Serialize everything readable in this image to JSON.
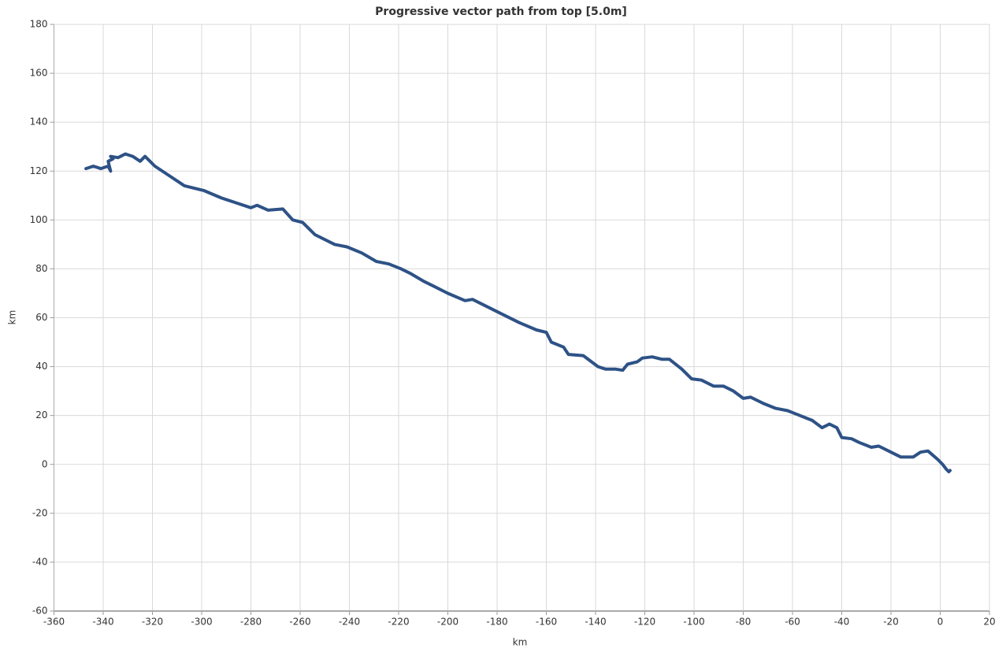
{
  "chart_data": {
    "type": "line",
    "title": "Progressive vector path from top [5.0m]",
    "x_label": "km",
    "y_label": "km",
    "color": "#2e5286",
    "grid": true,
    "xlim": [
      -360,
      20
    ],
    "xticks": [
      -360,
      -340,
      -320,
      -300,
      -280,
      -260,
      -240,
      -220,
      -200,
      -180,
      -160,
      -140,
      -120,
      -100,
      -80,
      -60,
      -40,
      -20,
      0,
      20
    ],
    "ylim": [
      -60,
      180
    ],
    "yticks": [
      -60,
      -40,
      -20,
      0,
      20,
      40,
      60,
      80,
      100,
      120,
      140,
      160,
      180
    ],
    "x": [
      -347,
      -344,
      -341,
      -338,
      -337,
      -338,
      -336,
      -337,
      -334,
      -331,
      -328,
      -325,
      -323,
      -319,
      -313,
      -307,
      -299,
      -292,
      -286,
      -280,
      -277.5,
      -273,
      -267,
      -263,
      -259,
      -254,
      -246,
      -241,
      -235,
      -229,
      -224,
      -219,
      -215,
      -210,
      -206,
      -200,
      -193,
      -190,
      -183,
      -177,
      -171,
      -164,
      -160,
      -158,
      -153,
      -151,
      -145,
      -139,
      -136,
      -132,
      -129,
      -127,
      -123,
      -121,
      -117,
      -113,
      -110,
      -105,
      -101,
      -97,
      -92,
      -88,
      -84,
      -80,
      -77,
      -72,
      -67,
      -62,
      -57,
      -52,
      -48,
      -45,
      -42,
      -40,
      -36,
      -33,
      -28,
      -25,
      -21,
      -16,
      -11,
      -8,
      -5,
      -1,
      1,
      2.5,
      3.5,
      4
    ],
    "values": [
      121,
      122,
      121,
      122,
      120,
      124,
      125,
      126,
      125.5,
      127,
      126,
      124,
      126,
      122,
      118,
      114,
      112,
      109,
      107,
      105,
      106,
      104,
      104.5,
      100,
      99,
      94,
      90,
      89,
      86.5,
      83,
      82,
      80,
      78,
      75,
      73,
      70,
      67,
      67.5,
      64,
      61,
      58,
      55,
      54,
      50,
      48,
      45,
      44.5,
      40,
      39,
      39,
      38.5,
      41,
      42,
      43.5,
      44,
      43,
      43,
      39,
      35,
      34.5,
      32,
      32,
      30,
      27,
      27.5,
      25,
      23,
      22,
      20,
      18,
      15,
      16.5,
      15,
      11,
      10.5,
      9,
      7,
      7.5,
      5.5,
      3,
      3,
      5,
      5.5,
      2,
      0,
      -2,
      -3,
      -2.5
    ]
  }
}
